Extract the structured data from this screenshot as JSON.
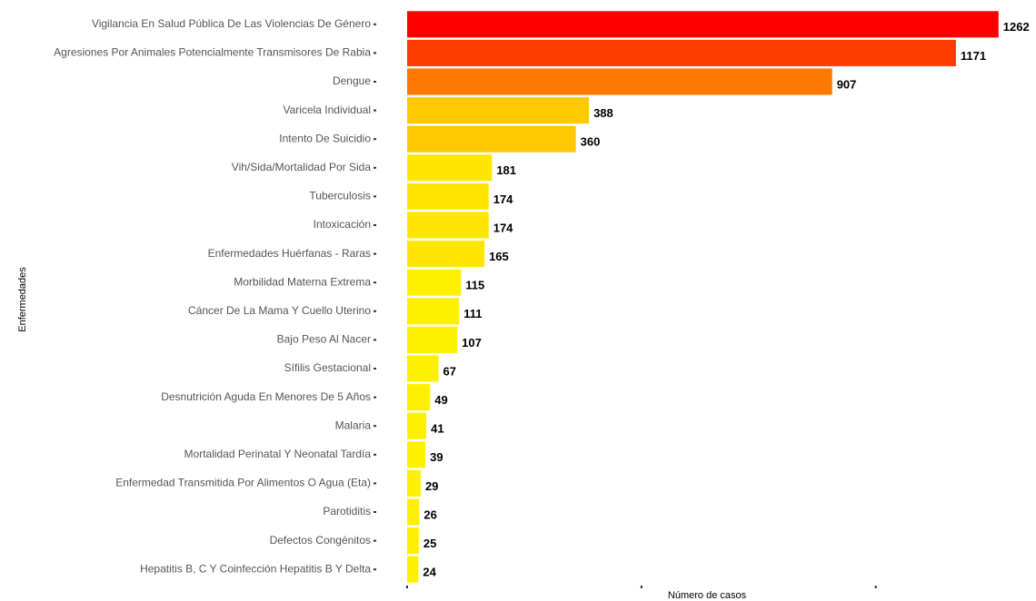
{
  "chart_data": {
    "type": "barh",
    "xlabel": "Número de casos",
    "ylabel": "Enfermedades",
    "categories": [
      "Vigilancia En Salud Pública De Las Violencias De Género",
      "Agresiones Por Animales Potencialmente Transmisores De Rabia",
      "Dengue",
      "Varicela Individual",
      "Intento De Suicidio",
      "Vih/Sida/Mortalidad Por Sida",
      "Tuberculosis",
      "Intoxicación",
      "Enfermedades Huérfanas - Raras",
      "Morbilidad Materna Extrema",
      "Cáncer De La Mama Y Cuello Uterino",
      "Bajo Peso Al Nacer",
      "Sífilis Gestacional",
      "Desnutrición Aguda En Menores De 5 Años",
      "Malaria",
      "Mortalidad Perinatal Y Neonatal Tardía",
      "Enfermedad Transmitida Por Alimentos O Agua (Eta)",
      "Parotiditis",
      "Defectos Congénitos",
      "Hepatitis B, C Y Coinfección Hepatitis B Y Delta"
    ],
    "values": [
      1262,
      1171,
      907,
      388,
      360,
      181,
      174,
      174,
      165,
      115,
      111,
      107,
      67,
      49,
      41,
      39,
      29,
      26,
      25,
      24
    ],
    "colors": [
      "#ff0000",
      "#ff3c00",
      "#ff7800",
      "#ffc800",
      "#ffc800",
      "#ffe600",
      "#ffe600",
      "#ffe600",
      "#ffe600",
      "#fff000",
      "#fff000",
      "#fff000",
      "#fff000",
      "#fff000",
      "#fff000",
      "#fff000",
      "#fff000",
      "#fff000",
      "#fff000",
      "#fff000"
    ],
    "xlim": [
      0,
      1340
    ],
    "xticks": [
      0,
      500,
      1000
    ],
    "grid": false
  }
}
